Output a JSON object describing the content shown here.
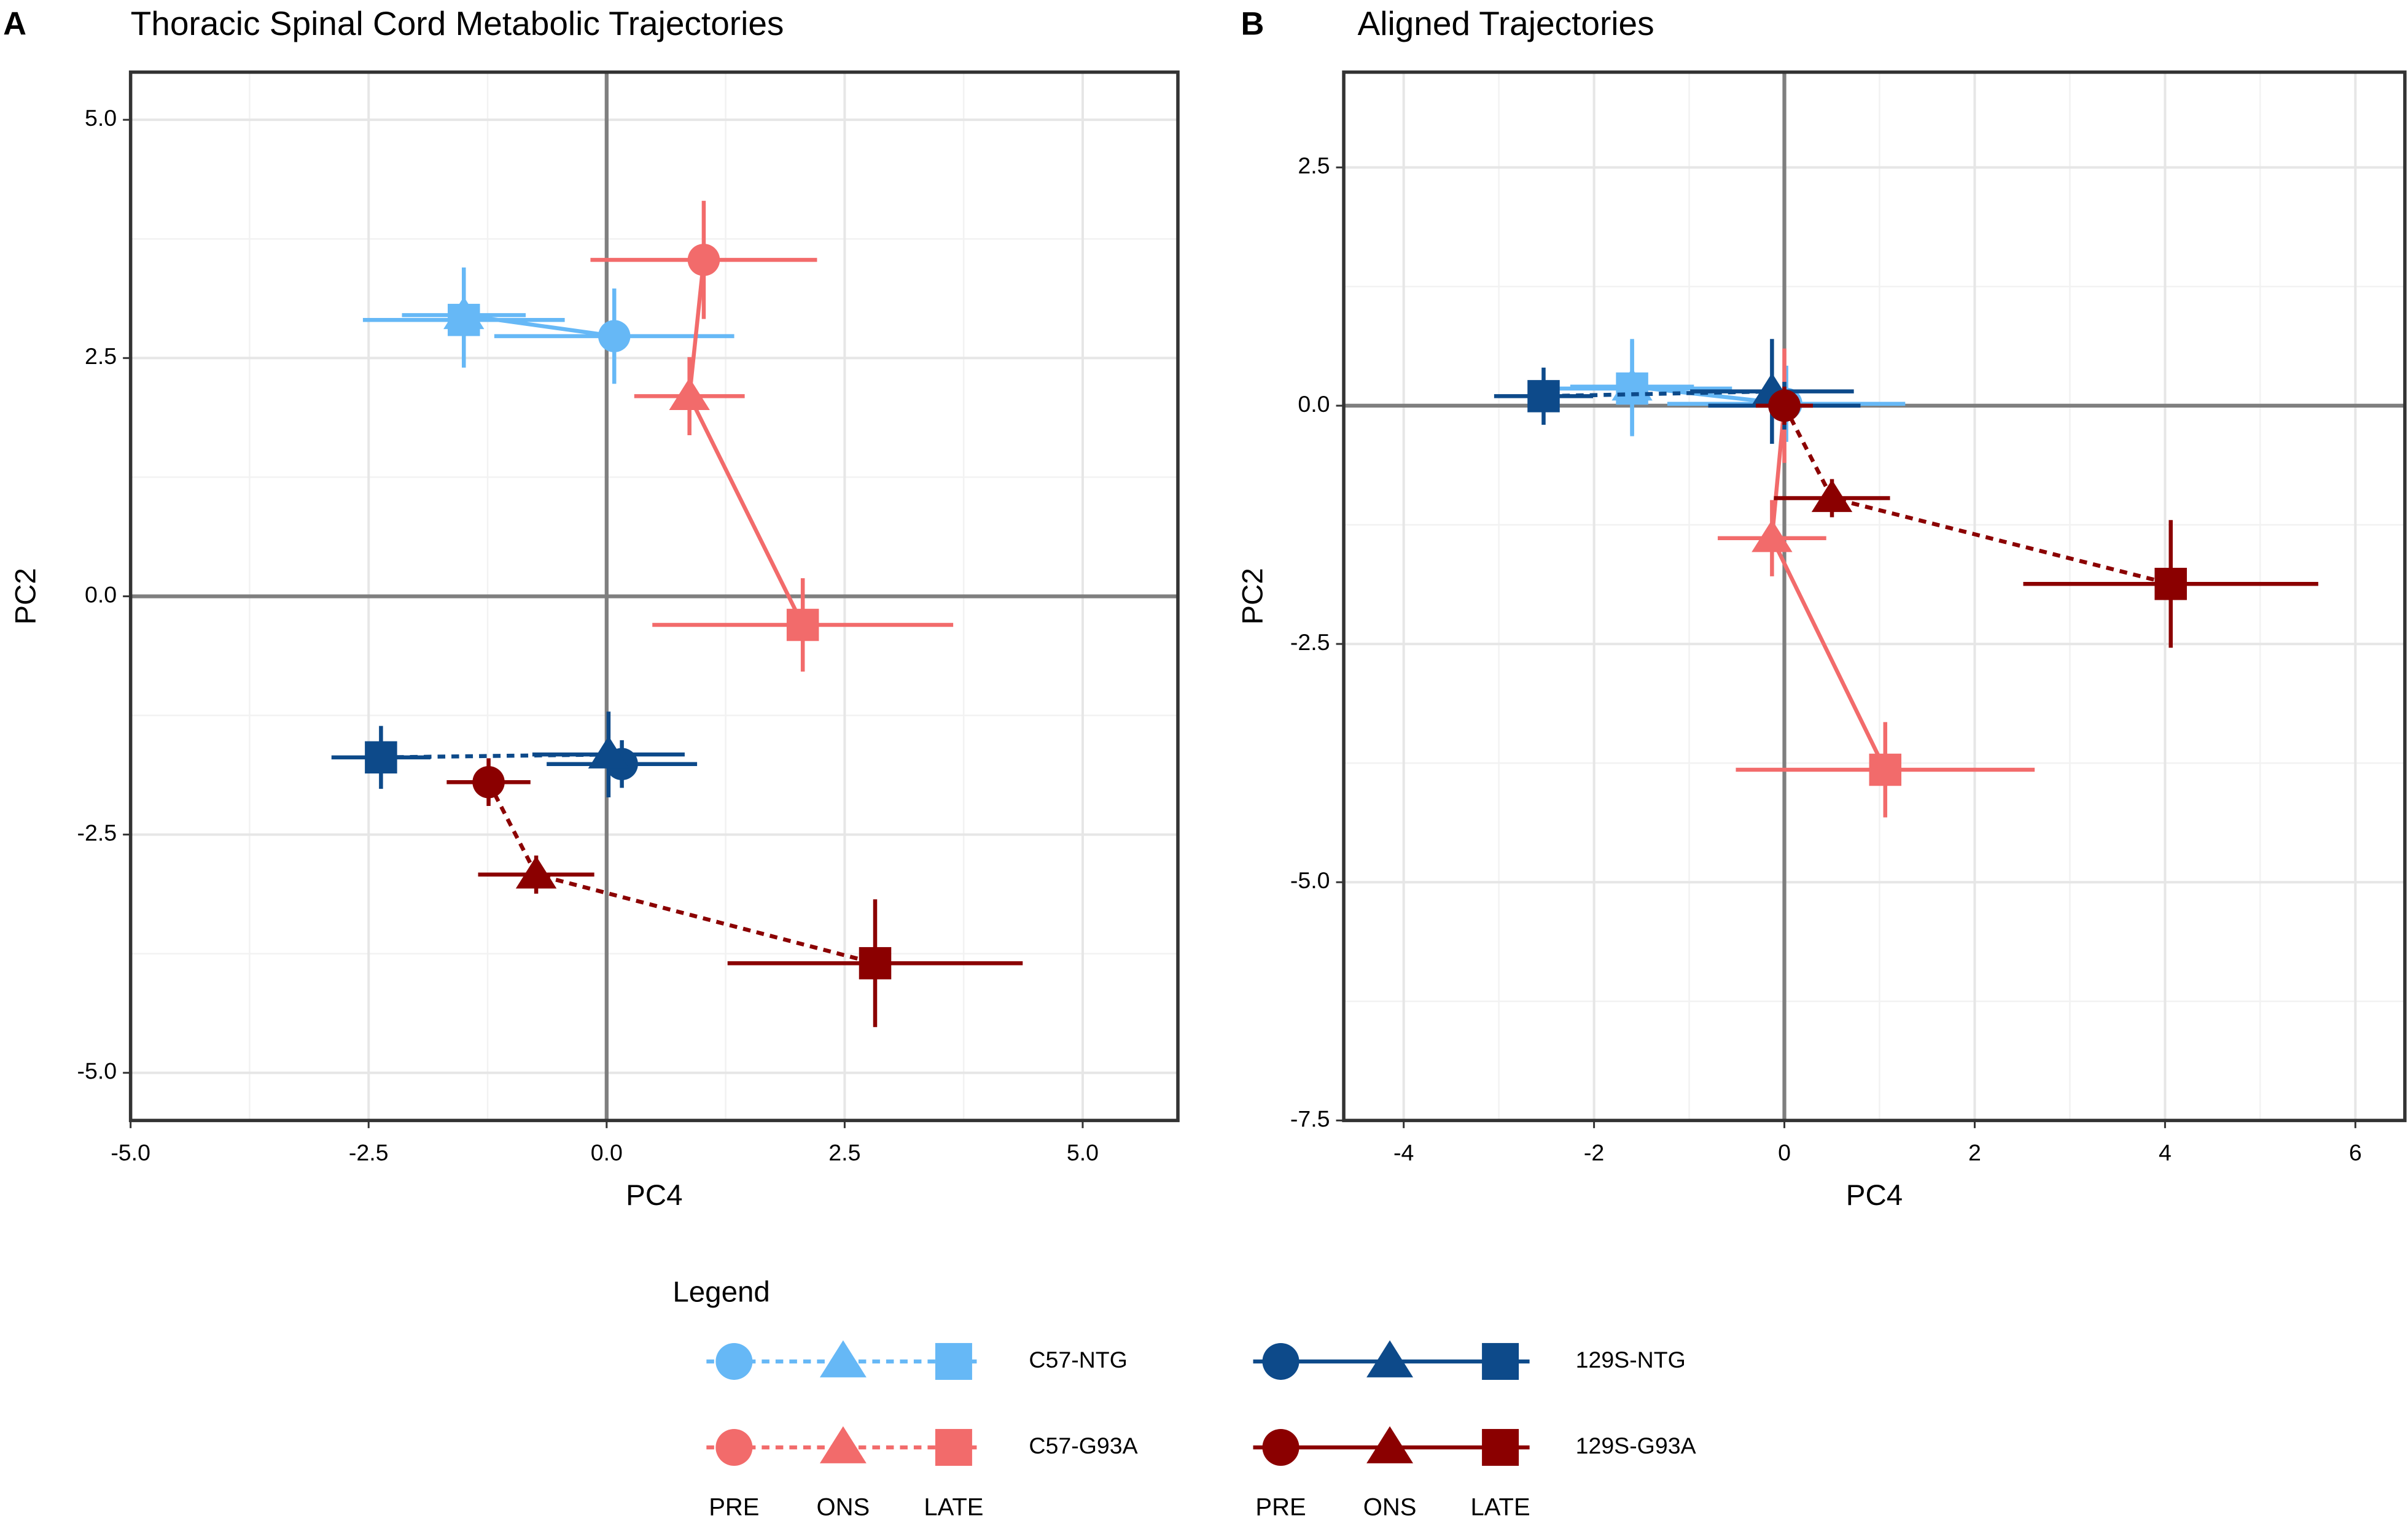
{
  "chart_data": [
    {
      "type": "scatter",
      "panel": "A",
      "title": "Thoracic Spinal Cord Metabolic Trajectories",
      "xlabel": "PC4",
      "ylabel": "PC2",
      "xlim": [
        -5,
        6
      ],
      "ylim": [
        -5.5,
        5.5
      ],
      "xticks": [
        {
          "value": -5,
          "label": "-5.0"
        },
        -2.5,
        {
          "value": 0,
          "label": "0.0"
        },
        2.5,
        {
          "value": 5,
          "label": "5.0"
        }
      ],
      "yticks": [
        {
          "value": -5,
          "label": "-5.0"
        },
        -2.5,
        {
          "value": 0,
          "label": "0.0"
        },
        2.5,
        {
          "value": 5,
          "label": "5.0"
        }
      ],
      "grid": true,
      "zero_lines": true,
      "shapes": [
        "circle",
        "triangle",
        "square"
      ],
      "series": [
        {
          "name": "C57-NTG",
          "color": "#66b8f6",
          "linetype": "solid",
          "x": [
            0.08,
            -1.5,
            -1.5
          ],
          "values": [
            2.73,
            2.95,
            2.9
          ],
          "xerr": [
            1.26,
            0.65,
            1.06
          ],
          "yerr": [
            0.5,
            0.5,
            0.5
          ]
        },
        {
          "name": "C57-G93A",
          "color": "#f26b6b",
          "linetype": "solid",
          "x": [
            1.02,
            0.87,
            2.06
          ],
          "values": [
            3.53,
            2.1,
            -0.3
          ],
          "xerr": [
            1.19,
            0.58,
            1.58
          ],
          "yerr": [
            0.62,
            0.41,
            0.49
          ]
        },
        {
          "name": "129S-NTG",
          "color": "#0d4a8a",
          "linetype": "dashed",
          "x": [
            0.16,
            0.02,
            -2.37
          ],
          "values": [
            -1.76,
            -1.66,
            -1.69
          ],
          "xerr": [
            0.79,
            0.8,
            0.52
          ],
          "yerr": [
            0.25,
            0.45,
            0.33
          ]
        },
        {
          "name": "129S-G93A",
          "color": "#8b0000",
          "linetype": "dashed",
          "x": [
            -1.24,
            -0.74,
            2.82
          ],
          "values": [
            -1.95,
            -2.92,
            -3.85
          ],
          "xerr": [
            0.44,
            0.61,
            1.55
          ],
          "yerr": [
            0.25,
            0.2,
            0.67
          ]
        }
      ]
    },
    {
      "type": "scatter",
      "panel": "B",
      "title": "Aligned Trajectories",
      "xlabel": "PC4",
      "ylabel": "PC2",
      "xlim": [
        -4.63,
        6.52
      ],
      "ylim": [
        -7.5,
        3.5
      ],
      "xticks": [
        -4,
        -2,
        0,
        2,
        4,
        6
      ],
      "yticks": [
        -7.5,
        {
          "value": -5,
          "label": "-5.0"
        },
        -2.5,
        {
          "value": 0,
          "label": "0.0"
        },
        2.5
      ],
      "grid": true,
      "zero_lines": true,
      "shapes": [
        "circle",
        "triangle",
        "square"
      ],
      "series": [
        {
          "color": "#66b8f6",
          "linetype": "solid",
          "x": [
            0.02,
            -1.6,
            -1.6
          ],
          "values": [
            0.02,
            0.2,
            0.18
          ],
          "xerr": [
            1.25,
            0.65,
            1.05
          ],
          "yerr": [
            0.4,
            0.5,
            0.5
          ]
        },
        {
          "color": "#f26b6b",
          "linetype": "solid",
          "x": [
            0,
            -0.13,
            1.06
          ],
          "values": [
            0,
            -1.39,
            -3.82
          ],
          "xerr": [
            0.3,
            0.57,
            1.57
          ],
          "yerr": [
            0.6,
            0.4,
            0.5
          ]
        },
        {
          "color": "#0d4a8a",
          "linetype": "dashed",
          "x": [
            0,
            -0.13,
            -2.53
          ],
          "values": [
            0,
            0.15,
            0.1
          ],
          "xerr": [
            0.8,
            0.86,
            0.52
          ],
          "yerr": [
            0.25,
            0.55,
            0.3
          ]
        },
        {
          "color": "#8b0000",
          "linetype": "dashed",
          "x": [
            0,
            0.5,
            4.06
          ],
          "values": [
            0,
            -0.97,
            -1.87
          ],
          "xerr": [
            0.3,
            0.61,
            1.55
          ],
          "yerr": [
            0.2,
            0.2,
            0.67
          ]
        }
      ]
    }
  ],
  "legend": {
    "title": "Legend",
    "stages": [
      "PRE",
      "ONS",
      "LATE"
    ],
    "linetypes": [
      "dashed",
      "dashed",
      "solid",
      "solid"
    ]
  }
}
